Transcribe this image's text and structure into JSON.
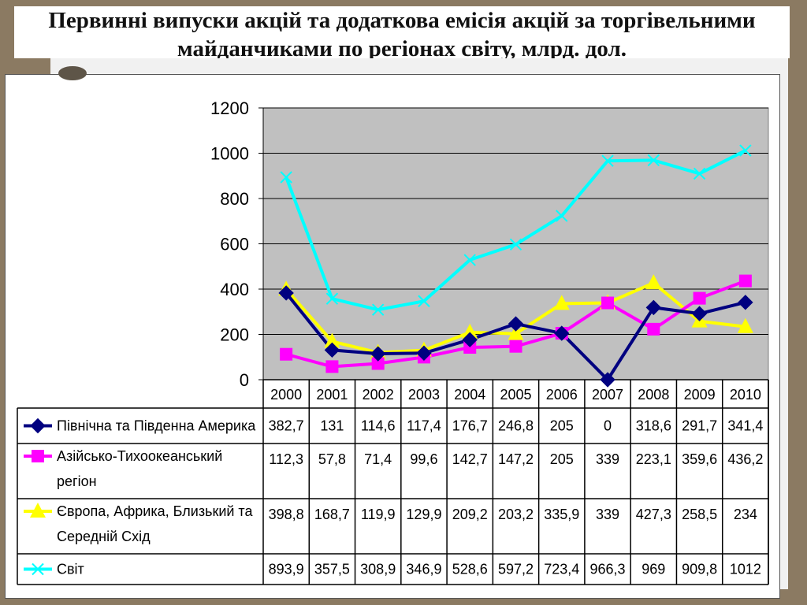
{
  "title": "Первинні випуски акцій та додаткова емісія акцій за торгівельними майданчиками по регіонах світу, млрд. дол.",
  "chart_data": {
    "type": "line",
    "title": "Первинні випуски акцій та додаткова емісія акцій за торгівельними майданчиками по регіонах світу, млрд. дол.",
    "categories": [
      "2000",
      "2001",
      "2002",
      "2003",
      "2004",
      "2005",
      "2006",
      "2007",
      "2008",
      "2009",
      "2010"
    ],
    "yticks": [
      "0",
      "200",
      "400",
      "600",
      "800",
      "1000",
      "1200"
    ],
    "ylim": [
      0,
      1200
    ],
    "grid": true,
    "legend_placement": "data table below chart",
    "plot_background": "#c0c0c0",
    "series": [
      {
        "name": "Північна та Південна Америка",
        "name_lines": [
          "Північна та Південна Америка"
        ],
        "color": "#000080",
        "marker": "diamond",
        "values": [
          382.7,
          131,
          114.6,
          117.4,
          176.7,
          246.8,
          205,
          0,
          318.6,
          291.7,
          341.4
        ],
        "labels": [
          "382,7",
          "131",
          "114,6",
          "117,4",
          "176,7",
          "246,8",
          "205",
          "0",
          "318,6",
          "291,7",
          "341,4"
        ]
      },
      {
        "name": "Азійсько-Тихоокеанський регіон",
        "name_lines": [
          "Азійсько-Тихоокеанський",
          "регіон"
        ],
        "color": "#ff00ff",
        "marker": "square",
        "values": [
          112.3,
          57.8,
          71.4,
          99.6,
          142.7,
          147.2,
          205,
          339,
          223.1,
          359.6,
          436.2
        ],
        "labels": [
          "112,3",
          "57,8",
          "71,4",
          "99,6",
          "142,7",
          "147,2",
          "205",
          "339",
          "223,1",
          "359,6",
          "436,2"
        ]
      },
      {
        "name": "Європа, Африка, Близький та Середній Схід",
        "name_lines": [
          "Європа, Африка, Близький та",
          "Середній Схід"
        ],
        "color": "#ffff00",
        "marker": "triangle",
        "values": [
          398.8,
          168.7,
          119.9,
          129.9,
          209.2,
          203.2,
          335.9,
          339,
          427.3,
          258.5,
          234
        ],
        "labels": [
          "398,8",
          "168,7",
          "119,9",
          "129,9",
          "209,2",
          "203,2",
          "335,9",
          "339",
          "427,3",
          "258,5",
          "234"
        ]
      },
      {
        "name": "Світ",
        "name_lines": [
          "Світ"
        ],
        "color": "#00ffff",
        "marker": "x",
        "values": [
          893.9,
          357.5,
          308.9,
          346.9,
          528.6,
          597.2,
          723.4,
          966.3,
          969,
          909.8,
          1012
        ],
        "labels": [
          "893,9",
          "357,5",
          "308,9",
          "346,9",
          "528,6",
          "597,2",
          "723,4",
          "966,3",
          "969",
          "909,8",
          "1012"
        ]
      }
    ]
  }
}
